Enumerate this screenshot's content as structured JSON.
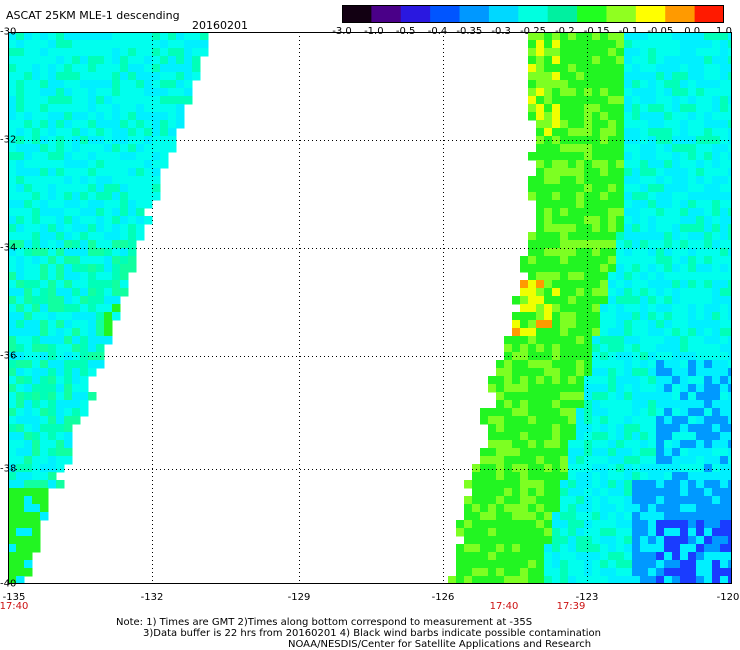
{
  "header": {
    "title": "ASCAT 25KM MLE-1 descending",
    "date": "20160201"
  },
  "colorbar": {
    "labels": [
      "-3.0",
      "-1.0",
      "-0.5",
      "-0.4",
      "-0.35",
      "-0.3",
      "-0.25",
      "-0.2",
      "-0.15",
      "-0.1",
      "-0.05",
      "0.0",
      "1.0"
    ],
    "colors": [
      "#120012",
      "#4a0088",
      "#2a18e0",
      "#0055ff",
      "#0098ff",
      "#00d8ff",
      "#00ffe0",
      "#00f0a0",
      "#20ff20",
      "#90ff20",
      "#ffff00",
      "#ff9a00",
      "#ff1a00"
    ]
  },
  "map": {
    "lat_labels": [
      "-30",
      "-32",
      "-34",
      "-36",
      "-38",
      "-40"
    ],
    "lon_labels": [
      "-135",
      "-132",
      "-129",
      "-126",
      "-123",
      "-120"
    ],
    "time_labels": [
      "17:40",
      "17:40",
      "17:39"
    ]
  },
  "notes": {
    "line1": "Note: 1) Times are GMT 2)Times along bottom correspond to measurement at -35S",
    "line2": "3)Data buffer is 22 hrs from 20160201 4) Black wind barbs indicate possible contamination",
    "line3": "NOAA/NESDIS/Center for Satellite Applications and Research"
  }
}
